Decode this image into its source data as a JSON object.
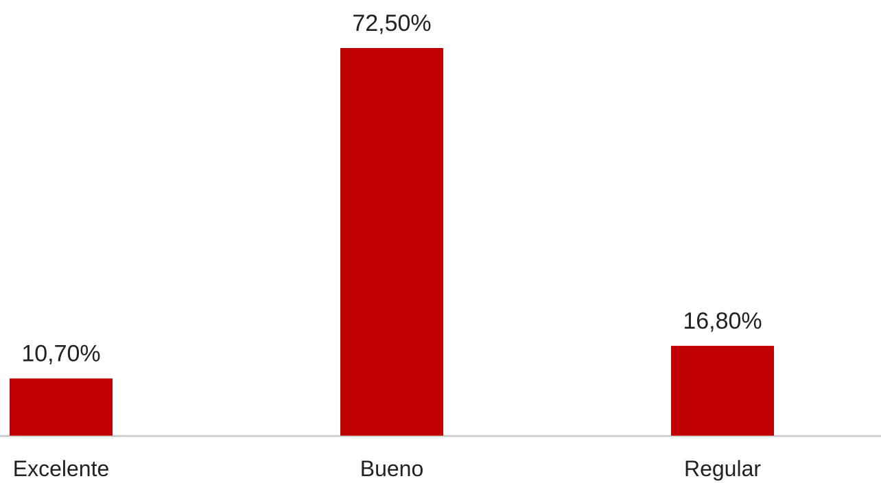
{
  "chart_data": {
    "type": "bar",
    "categories": [
      "Excelente",
      "Bueno",
      "Regular"
    ],
    "values": [
      10.7,
      72.5,
      16.8
    ],
    "data_labels": [
      "10,70%",
      "72,50%",
      "16,80%"
    ],
    "title": "",
    "xlabel": "",
    "ylabel": "",
    "ylim": [
      0,
      72.5
    ],
    "grid": false,
    "legend": "none",
    "bar_color": "#c00000",
    "axis_color": "#d0d0d0"
  }
}
